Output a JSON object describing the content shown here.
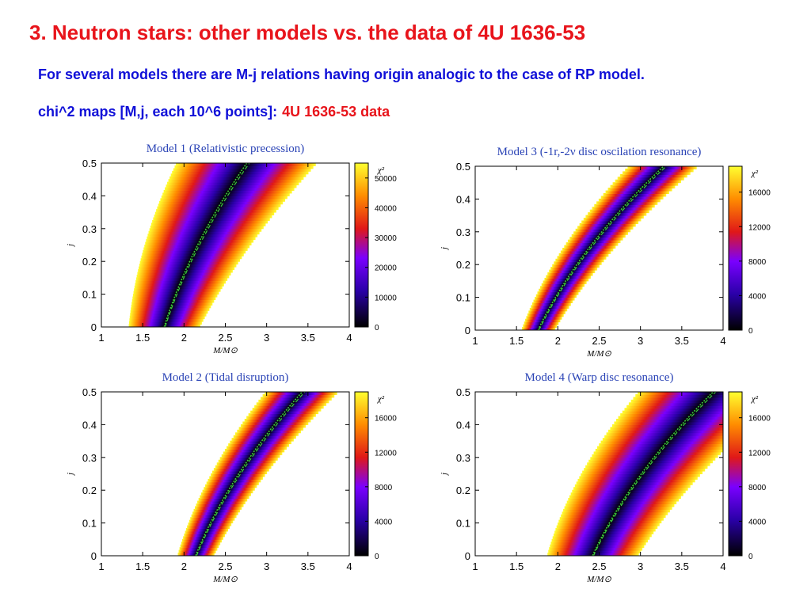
{
  "slide": {
    "title": "3. Neutron stars: other models vs. the data of 4U 1636-53",
    "line1": "For several models there are M-j relations having origin analogic to the case of RP model.",
    "line2_prefix": "chi^2 maps [M,j, each 10^6 points]:",
    "line2_highlight": "4U 1636-53 data"
  },
  "colors": {
    "title": "#e8141b",
    "body_text": "#1010d8",
    "panel_title": "#2b44b6",
    "fit_curve": "#3cc83c",
    "colormap": [
      "#000000",
      "#2a00a8",
      "#7a00ff",
      "#e01818",
      "#ff8c00",
      "#ffff30"
    ]
  },
  "chart_data": [
    {
      "type": "heatmap",
      "title": "Model 1 (Relativistic precession)",
      "xlabel": "M/M⊙",
      "ylabel": "j",
      "xlim": [
        1,
        4
      ],
      "ylim": [
        0,
        0.5
      ],
      "x_ticks": [
        "1",
        "1.5",
        "2",
        "2.5",
        "3",
        "3.5",
        "4"
      ],
      "y_ticks": [
        "0",
        "0.1",
        "0.2",
        "0.3",
        "0.4",
        "0.5"
      ],
      "colorbar_label": "χ²",
      "colorbar_ticks": [
        "0",
        "10000",
        "20000",
        "30000",
        "40000",
        "50000"
      ],
      "colorbar_max": 55000,
      "valley": {
        "M_at_j0": 1.76,
        "M_at_j05": 2.76,
        "halfwidth_at_j0": 0.43,
        "halfwidth_at_j05": 0.85
      },
      "curve_color": "#3cc83c"
    },
    {
      "type": "heatmap",
      "title": "Model 3 (-1r,-2ν disc oscilation resonance)",
      "xlabel": "M/M⊙",
      "ylabel": "j",
      "xlim": [
        1,
        4
      ],
      "ylim": [
        0,
        0.5
      ],
      "x_ticks": [
        "1",
        "1.5",
        "2",
        "2.5",
        "3",
        "3.5",
        "4"
      ],
      "y_ticks": [
        "0",
        "0.1",
        "0.2",
        "0.3",
        "0.4",
        "0.5"
      ],
      "colorbar_label": "χ²",
      "colorbar_ticks": [
        "0",
        "4000",
        "8000",
        "12000",
        "16000"
      ],
      "colorbar_max": 19000,
      "valley": {
        "M_at_j0": 1.76,
        "M_at_j05": 3.28,
        "halfwidth_at_j0": 0.2,
        "halfwidth_at_j05": 0.42
      },
      "curve_color": "#3cc83c"
    },
    {
      "type": "heatmap",
      "title": "Model 2 (Tidal disruption)",
      "xlabel": "M/M⊙",
      "ylabel": "j",
      "xlim": [
        1,
        4
      ],
      "ylim": [
        0,
        0.5
      ],
      "x_ticks": [
        "1",
        "1.5",
        "2",
        "2.5",
        "3",
        "3.5",
        "4"
      ],
      "y_ticks": [
        "0",
        "0.1",
        "0.2",
        "0.3",
        "0.4",
        "0.5"
      ],
      "colorbar_label": "χ²",
      "colorbar_ticks": [
        "0",
        "4000",
        "8000",
        "12000",
        "16000"
      ],
      "colorbar_max": 19000,
      "valley": {
        "M_at_j0": 2.14,
        "M_at_j05": 3.43,
        "halfwidth_at_j0": 0.22,
        "halfwidth_at_j05": 0.44
      },
      "curve_color": "#3cc83c"
    },
    {
      "type": "heatmap",
      "title": "Model 4 (Warp disc resonance)",
      "xlabel": "M/M⊙",
      "ylabel": "j",
      "xlim": [
        1,
        4
      ],
      "ylim": [
        0,
        0.5
      ],
      "x_ticks": [
        "1",
        "1.5",
        "2",
        "2.5",
        "3",
        "3.5",
        "4"
      ],
      "y_ticks": [
        "0",
        "0.1",
        "0.2",
        "0.3",
        "0.4",
        "0.5"
      ],
      "colorbar_label": "χ²",
      "colorbar_ticks": [
        "0",
        "4000",
        "8000",
        "12000",
        "16000"
      ],
      "colorbar_max": 19000,
      "valley": {
        "M_at_j0": 2.42,
        "M_at_j05": 3.88,
        "halfwidth_at_j0": 0.55,
        "halfwidth_at_j05": 0.9
      },
      "curve_color": "#3cc83c"
    }
  ]
}
